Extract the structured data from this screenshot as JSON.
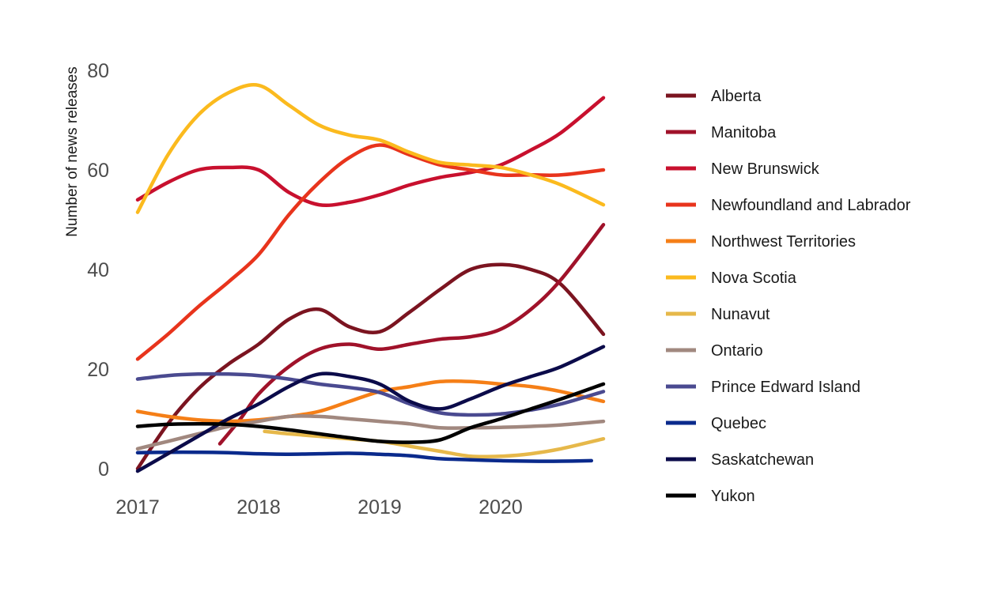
{
  "chart_data": {
    "type": "line",
    "title": "",
    "xlabel": "",
    "ylabel": "Number of news releases",
    "xlim": [
      2017,
      2020.85
    ],
    "ylim": [
      -3,
      85
    ],
    "xticks": [
      2017,
      2018,
      2019,
      2020
    ],
    "yticks": [
      0,
      20,
      40,
      60,
      80
    ],
    "grid": false,
    "legend_position": "right",
    "series": [
      {
        "name": "Alberta",
        "color": "#7B1420",
        "points": [
          [
            2017,
            0
          ],
          [
            2017.25,
            9
          ],
          [
            2017.5,
            16
          ],
          [
            2017.75,
            21
          ],
          [
            2018,
            25
          ],
          [
            2018.25,
            30
          ],
          [
            2018.5,
            32
          ],
          [
            2018.75,
            28.5
          ],
          [
            2019,
            27.5
          ],
          [
            2019.25,
            31.5
          ],
          [
            2019.5,
            36
          ],
          [
            2019.75,
            40
          ],
          [
            2020,
            41
          ],
          [
            2020.25,
            40
          ],
          [
            2020.5,
            37
          ],
          [
            2020.85,
            27
          ]
        ]
      },
      {
        "name": "Manitoba",
        "color": "#A0122A",
        "points": [
          [
            2017.68,
            5
          ],
          [
            2017.85,
            10
          ],
          [
            2018,
            15
          ],
          [
            2018.25,
            20.5
          ],
          [
            2018.5,
            24
          ],
          [
            2018.75,
            25
          ],
          [
            2019,
            24
          ],
          [
            2019.25,
            25
          ],
          [
            2019.5,
            26
          ],
          [
            2019.75,
            26.5
          ],
          [
            2020,
            28
          ],
          [
            2020.25,
            32
          ],
          [
            2020.5,
            38
          ],
          [
            2020.85,
            49
          ]
        ]
      },
      {
        "name": "New Brunswick",
        "color": "#C8102E",
        "points": [
          [
            2017,
            54
          ],
          [
            2017.25,
            57.5
          ],
          [
            2017.5,
            60
          ],
          [
            2017.75,
            60.5
          ],
          [
            2018,
            60
          ],
          [
            2018.25,
            55.5
          ],
          [
            2018.5,
            53
          ],
          [
            2018.75,
            53.5
          ],
          [
            2019,
            55
          ],
          [
            2019.25,
            57
          ],
          [
            2019.5,
            58.5
          ],
          [
            2019.75,
            59.5
          ],
          [
            2020,
            61
          ],
          [
            2020.25,
            64
          ],
          [
            2020.5,
            67.5
          ],
          [
            2020.85,
            74.5
          ]
        ]
      },
      {
        "name": "Newfoundland and Labrador",
        "color": "#E8341C",
        "points": [
          [
            2017,
            22
          ],
          [
            2017.25,
            27
          ],
          [
            2017.5,
            32.5
          ],
          [
            2017.75,
            37.5
          ],
          [
            2018,
            43
          ],
          [
            2018.25,
            51
          ],
          [
            2018.5,
            57.5
          ],
          [
            2018.75,
            62.5
          ],
          [
            2019,
            65
          ],
          [
            2019.25,
            63
          ],
          [
            2019.5,
            61
          ],
          [
            2019.75,
            60
          ],
          [
            2020,
            59
          ],
          [
            2020.25,
            59
          ],
          [
            2020.5,
            59
          ],
          [
            2020.85,
            60
          ]
        ]
      },
      {
        "name": "Northwest Territories",
        "color": "#F57F17",
        "points": [
          [
            2017,
            11.5
          ],
          [
            2017.25,
            10.5
          ],
          [
            2017.5,
            9.8
          ],
          [
            2017.75,
            9.5
          ],
          [
            2018,
            9.8
          ],
          [
            2018.25,
            10.5
          ],
          [
            2018.5,
            11.5
          ],
          [
            2018.75,
            13.5
          ],
          [
            2019,
            15.5
          ],
          [
            2019.25,
            16.5
          ],
          [
            2019.5,
            17.5
          ],
          [
            2019.75,
            17.5
          ],
          [
            2020,
            17
          ],
          [
            2020.25,
            16.5
          ],
          [
            2020.5,
            15.5
          ],
          [
            2020.85,
            13.5
          ]
        ]
      },
      {
        "name": "Nova Scotia",
        "color": "#FBBA1E",
        "points": [
          [
            2017,
            51.5
          ],
          [
            2017.25,
            63
          ],
          [
            2017.5,
            71
          ],
          [
            2017.75,
            75.5
          ],
          [
            2018,
            77
          ],
          [
            2018.25,
            73
          ],
          [
            2018.5,
            69
          ],
          [
            2018.75,
            67
          ],
          [
            2019,
            66
          ],
          [
            2019.25,
            63.5
          ],
          [
            2019.5,
            61.5
          ],
          [
            2019.75,
            61
          ],
          [
            2020,
            60.5
          ],
          [
            2020.25,
            59
          ],
          [
            2020.5,
            57
          ],
          [
            2020.85,
            53
          ]
        ]
      },
      {
        "name": "Nunavut",
        "color": "#E6B84A",
        "points": [
          [
            2018.05,
            7.5
          ],
          [
            2018.25,
            7
          ],
          [
            2018.5,
            6.5
          ],
          [
            2018.75,
            6
          ],
          [
            2019,
            5.5
          ],
          [
            2019.25,
            4.5
          ],
          [
            2019.5,
            3.5
          ],
          [
            2019.75,
            2.5
          ],
          [
            2020,
            2.5
          ],
          [
            2020.25,
            3
          ],
          [
            2020.5,
            4
          ],
          [
            2020.85,
            6
          ]
        ]
      },
      {
        "name": "Ontario",
        "color": "#A1887F",
        "points": [
          [
            2017,
            4
          ],
          [
            2017.25,
            5.5
          ],
          [
            2017.5,
            7
          ],
          [
            2017.75,
            8.5
          ],
          [
            2018,
            9.5
          ],
          [
            2018.25,
            10.5
          ],
          [
            2018.5,
            10.5
          ],
          [
            2018.75,
            10
          ],
          [
            2019,
            9.5
          ],
          [
            2019.25,
            9
          ],
          [
            2019.5,
            8.2
          ],
          [
            2019.75,
            8.2
          ],
          [
            2020,
            8.3
          ],
          [
            2020.25,
            8.5
          ],
          [
            2020.5,
            8.8
          ],
          [
            2020.85,
            9.5
          ]
        ]
      },
      {
        "name": "Prince Edward Island",
        "color": "#4A4A90",
        "points": [
          [
            2017,
            18
          ],
          [
            2017.25,
            18.7
          ],
          [
            2017.5,
            19
          ],
          [
            2017.75,
            19
          ],
          [
            2018,
            18.7
          ],
          [
            2018.25,
            18
          ],
          [
            2018.5,
            17
          ],
          [
            2018.75,
            16.3
          ],
          [
            2019,
            15.3
          ],
          [
            2019.25,
            13
          ],
          [
            2019.5,
            11.2
          ],
          [
            2019.75,
            10.8
          ],
          [
            2020,
            11
          ],
          [
            2020.25,
            11.8
          ],
          [
            2020.5,
            13
          ],
          [
            2020.85,
            15.5
          ]
        ]
      },
      {
        "name": "Quebec",
        "color": "#0A2A8C",
        "points": [
          [
            2017,
            3.2
          ],
          [
            2017.25,
            3.3
          ],
          [
            2017.5,
            3.3
          ],
          [
            2017.75,
            3.2
          ],
          [
            2018,
            3
          ],
          [
            2018.25,
            2.9
          ],
          [
            2018.5,
            3
          ],
          [
            2018.75,
            3.1
          ],
          [
            2019,
            2.9
          ],
          [
            2019.25,
            2.6
          ],
          [
            2019.5,
            2
          ],
          [
            2019.75,
            1.8
          ],
          [
            2020,
            1.6
          ],
          [
            2020.25,
            1.5
          ],
          [
            2020.5,
            1.5
          ],
          [
            2020.75,
            1.6
          ]
        ]
      },
      {
        "name": "Saskatchewan",
        "color": "#0B0B4A",
        "points": [
          [
            2017,
            -0.5
          ],
          [
            2017.25,
            3
          ],
          [
            2017.5,
            6.5
          ],
          [
            2017.75,
            10
          ],
          [
            2018,
            13
          ],
          [
            2018.25,
            16.5
          ],
          [
            2018.5,
            19
          ],
          [
            2018.75,
            18.5
          ],
          [
            2019,
            17
          ],
          [
            2019.25,
            13.5
          ],
          [
            2019.5,
            12
          ],
          [
            2019.75,
            14
          ],
          [
            2020,
            16.5
          ],
          [
            2020.25,
            18.5
          ],
          [
            2020.5,
            20.5
          ],
          [
            2020.85,
            24.5
          ]
        ]
      },
      {
        "name": "Yukon",
        "color": "#000000",
        "points": [
          [
            2017,
            8.5
          ],
          [
            2017.25,
            8.9
          ],
          [
            2017.5,
            9
          ],
          [
            2017.75,
            8.9
          ],
          [
            2018,
            8.5
          ],
          [
            2018.25,
            7.8
          ],
          [
            2018.5,
            7
          ],
          [
            2018.75,
            6.2
          ],
          [
            2019,
            5.5
          ],
          [
            2019.25,
            5.3
          ],
          [
            2019.5,
            5.8
          ],
          [
            2019.75,
            8.2
          ],
          [
            2020,
            10
          ],
          [
            2020.25,
            12
          ],
          [
            2020.5,
            14
          ],
          [
            2020.85,
            17
          ]
        ]
      }
    ]
  }
}
